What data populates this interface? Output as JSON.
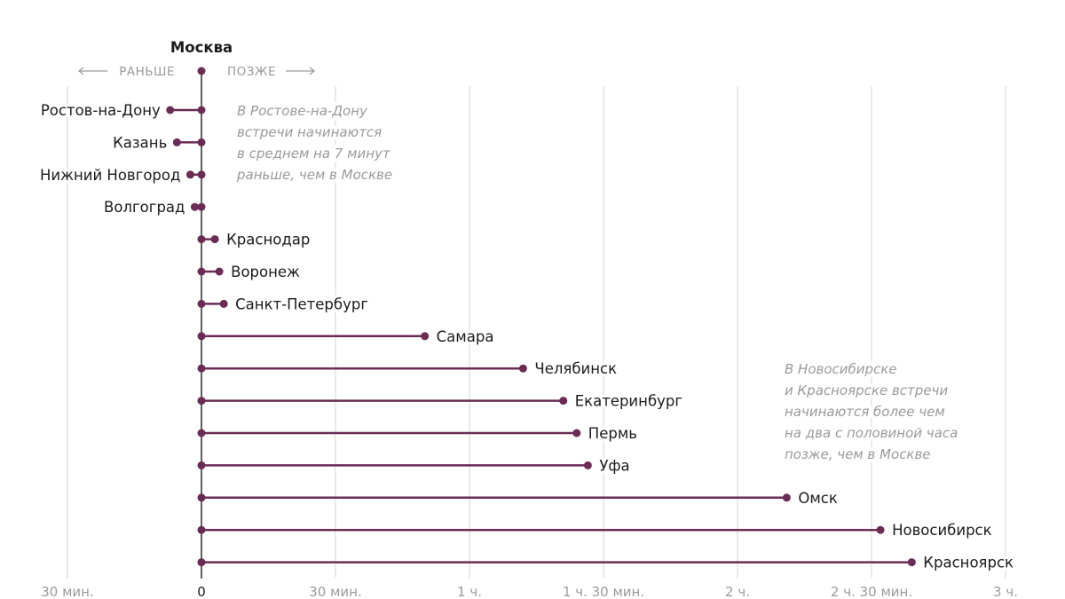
{
  "chart_data": {
    "type": "lollipop",
    "title": "Москва",
    "direction_labels": {
      "earlier": "РАНЬШЕ",
      "later": "ПОЗЖЕ"
    },
    "unit": "minutes relative to Moscow",
    "xlim": [
      -30,
      180
    ],
    "ticks": [
      {
        "value": -30,
        "label": "30 мин."
      },
      {
        "value": 0,
        "label": "0"
      },
      {
        "value": 30,
        "label": "30 мин."
      },
      {
        "value": 60,
        "label": "1 ч."
      },
      {
        "value": 90,
        "label": "1 ч. 30 мин."
      },
      {
        "value": 120,
        "label": "2 ч."
      },
      {
        "value": 150,
        "label": "2 ч. 30 мин."
      },
      {
        "value": 180,
        "label": "3 ч."
      }
    ],
    "grid": true,
    "categories": [
      "Ростов-на-Дону",
      "Казань",
      "Нижний Новгород",
      "Волгоград",
      "Краснодар",
      "Воронеж",
      "Санкт-Петербург",
      "Самара",
      "Челябинск",
      "Екатеринбург",
      "Пермь",
      "Уфа",
      "Омск",
      "Новосибирск",
      "Красноярск"
    ],
    "values": [
      -7,
      -5.5,
      -2.5,
      -1.5,
      3,
      4,
      5,
      50,
      72,
      81,
      84,
      86.5,
      131,
      152,
      159
    ],
    "annotations": [
      {
        "lines": [
          "В Ростове-на-Дону",
          "встречи начинаются",
          "в среднем на 7 минут",
          "раньше, чем в Москве"
        ],
        "near": "Ростов-на-Дону"
      },
      {
        "lines": [
          "В Новосибирске",
          "и Красноярске встречи",
          "начинаются более чем",
          "на два с половиной часа",
          "позже, чем в Москве"
        ],
        "near": "Челябинск"
      }
    ]
  },
  "colors": {
    "series": "#6a2b55",
    "grid": "#dcdcdc",
    "text": "#1b1b1b",
    "muted": "#9a9a9a"
  }
}
